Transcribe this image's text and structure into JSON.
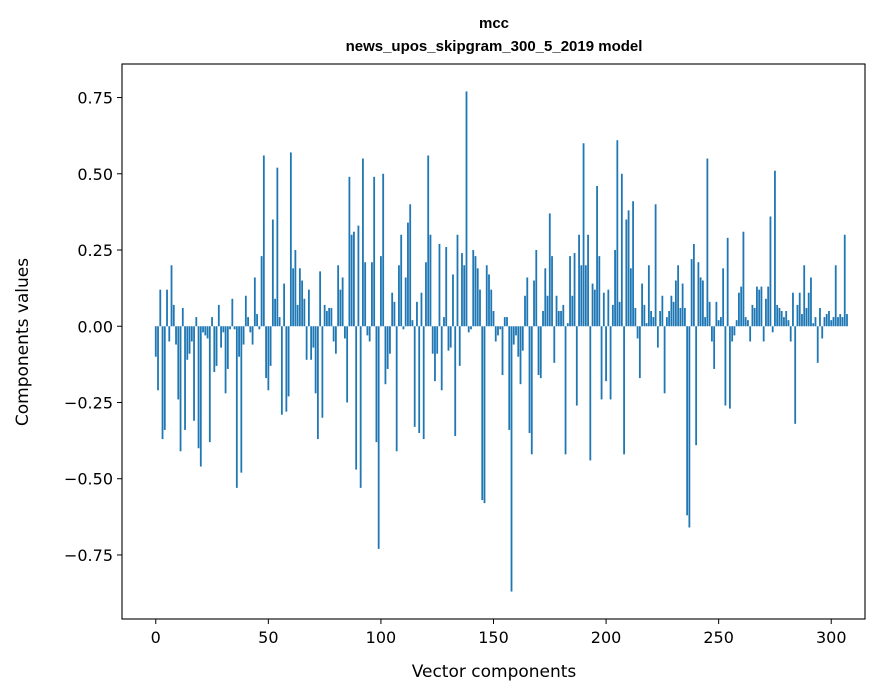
{
  "chart_data": {
    "type": "bar",
    "title_line1": "mcc",
    "title_line2": "news_upos_skipgram_300_5_2019 model",
    "xlabel": "Vector components",
    "ylabel": "Components values",
    "xlim": [
      -15,
      315
    ],
    "ylim": [
      -0.96,
      0.86
    ],
    "xticks": [
      0,
      50,
      100,
      150,
      200,
      250,
      300
    ],
    "xtick_labels": [
      "0",
      "50",
      "100",
      "150",
      "200",
      "250",
      "300"
    ],
    "yticks": [
      -0.75,
      -0.5,
      -0.25,
      0.0,
      0.25,
      0.5,
      0.75
    ],
    "ytick_labels": [
      "−0.75",
      "−0.50",
      "−0.25",
      "0.00",
      "0.25",
      "0.50",
      "0.75"
    ],
    "bar_color": "#1f77b4",
    "bar_width": 0.8,
    "values": [
      -0.1,
      -0.21,
      0.12,
      -0.37,
      -0.34,
      0.12,
      -0.05,
      0.2,
      0.07,
      -0.06,
      -0.24,
      -0.41,
      0.06,
      -0.34,
      -0.11,
      -0.09,
      -0.05,
      -0.31,
      0.03,
      -0.4,
      -0.46,
      -0.02,
      -0.03,
      -0.04,
      -0.38,
      0.03,
      -0.15,
      -0.13,
      0.07,
      -0.07,
      -0.02,
      -0.22,
      -0.14,
      -0.01,
      0.09,
      -0.01,
      -0.53,
      -0.1,
      -0.48,
      -0.06,
      0.1,
      0.03,
      -0.02,
      -0.06,
      0.16,
      0.04,
      -0.01,
      0.23,
      0.56,
      -0.17,
      -0.21,
      -0.13,
      0.35,
      0.09,
      0.52,
      0.03,
      -0.29,
      0.14,
      -0.28,
      -0.23,
      0.57,
      0.19,
      0.25,
      0.07,
      0.19,
      0.15,
      0.09,
      -0.11,
      0.12,
      -0.11,
      -0.07,
      -0.22,
      -0.37,
      0.18,
      -0.3,
      0.07,
      0.05,
      0.06,
      0.06,
      -0.05,
      -0.09,
      0.2,
      0.12,
      0.16,
      -0.04,
      -0.25,
      0.49,
      0.3,
      0.31,
      -0.47,
      0.33,
      -0.53,
      0.55,
      0.21,
      -0.03,
      -0.05,
      0.21,
      0.49,
      -0.38,
      -0.73,
      0.23,
      0.5,
      -0.19,
      -0.14,
      -0.09,
      0.11,
      0.08,
      -0.41,
      0.2,
      0.3,
      -0.01,
      0.16,
      0.34,
      0.4,
      0.02,
      -0.33,
      0.08,
      -0.35,
      0.11,
      -0.37,
      0.21,
      0.56,
      0.3,
      -0.09,
      -0.18,
      -0.09,
      0.27,
      -0.21,
      0.03,
      0.26,
      -0.08,
      -0.07,
      0.17,
      -0.36,
      0.3,
      -0.13,
      0.24,
      0.2,
      0.77,
      -0.02,
      -0.01,
      0.25,
      0.23,
      0.19,
      0.12,
      -0.57,
      -0.58,
      0.2,
      0.17,
      0.12,
      0.05,
      -0.05,
      -0.03,
      -0.01,
      -0.16,
      0.03,
      0.03,
      -0.34,
      -0.87,
      -0.06,
      -0.03,
      -0.1,
      -0.19,
      -0.08,
      0.1,
      0.16,
      -0.35,
      -0.42,
      0.15,
      0.25,
      -0.16,
      -0.17,
      0.05,
      0.19,
      0.1,
      0.37,
      0.23,
      -0.12,
      0.1,
      0.05,
      0.05,
      0.07,
      -0.42,
      0.01,
      0.23,
      0.1,
      0.24,
      -0.26,
      0.3,
      0.2,
      0.6,
      0.2,
      0.3,
      -0.44,
      0.14,
      0.12,
      0.46,
      0.23,
      -0.24,
      0.11,
      -0.18,
      0.12,
      -0.24,
      0.07,
      0.25,
      0.61,
      0.08,
      0.5,
      -0.42,
      0.35,
      0.38,
      0.19,
      0.41,
      0.06,
      -0.04,
      -0.17,
      0.14,
      0.07,
      0.01,
      0.2,
      0.05,
      0.03,
      0.4,
      -0.07,
      0.05,
      0.1,
      -0.22,
      0.03,
      0.05,
      0.1,
      0.08,
      0.15,
      0.2,
      0.06,
      0.14,
      0.06,
      -0.62,
      -0.66,
      0.22,
      0.27,
      -0.39,
      0.21,
      0.16,
      0.15,
      0.03,
      0.55,
      0.08,
      -0.05,
      -0.14,
      0.08,
      0.02,
      0.03,
      0.19,
      -0.26,
      0.29,
      -0.27,
      -0.05,
      -0.03,
      0.02,
      0.11,
      0.13,
      0.31,
      0.03,
      0.02,
      -0.05,
      0.07,
      0.06,
      0.13,
      0.12,
      0.13,
      -0.05,
      0.09,
      0.13,
      0.36,
      -0.02,
      0.51,
      0.07,
      0.06,
      0.05,
      0.03,
      0.05,
      0.02,
      -0.05,
      0.11,
      -0.32,
      0.07,
      0.11,
      0.04,
      0.2,
      0.06,
      0.11,
      0.16,
      0.01,
      0.03,
      -0.12,
      0.06,
      -0.04,
      0.03,
      0.04,
      0.05,
      0.02,
      0.03,
      0.2,
      0.03,
      0.04,
      0.03,
      0.3,
      0.04
    ]
  }
}
